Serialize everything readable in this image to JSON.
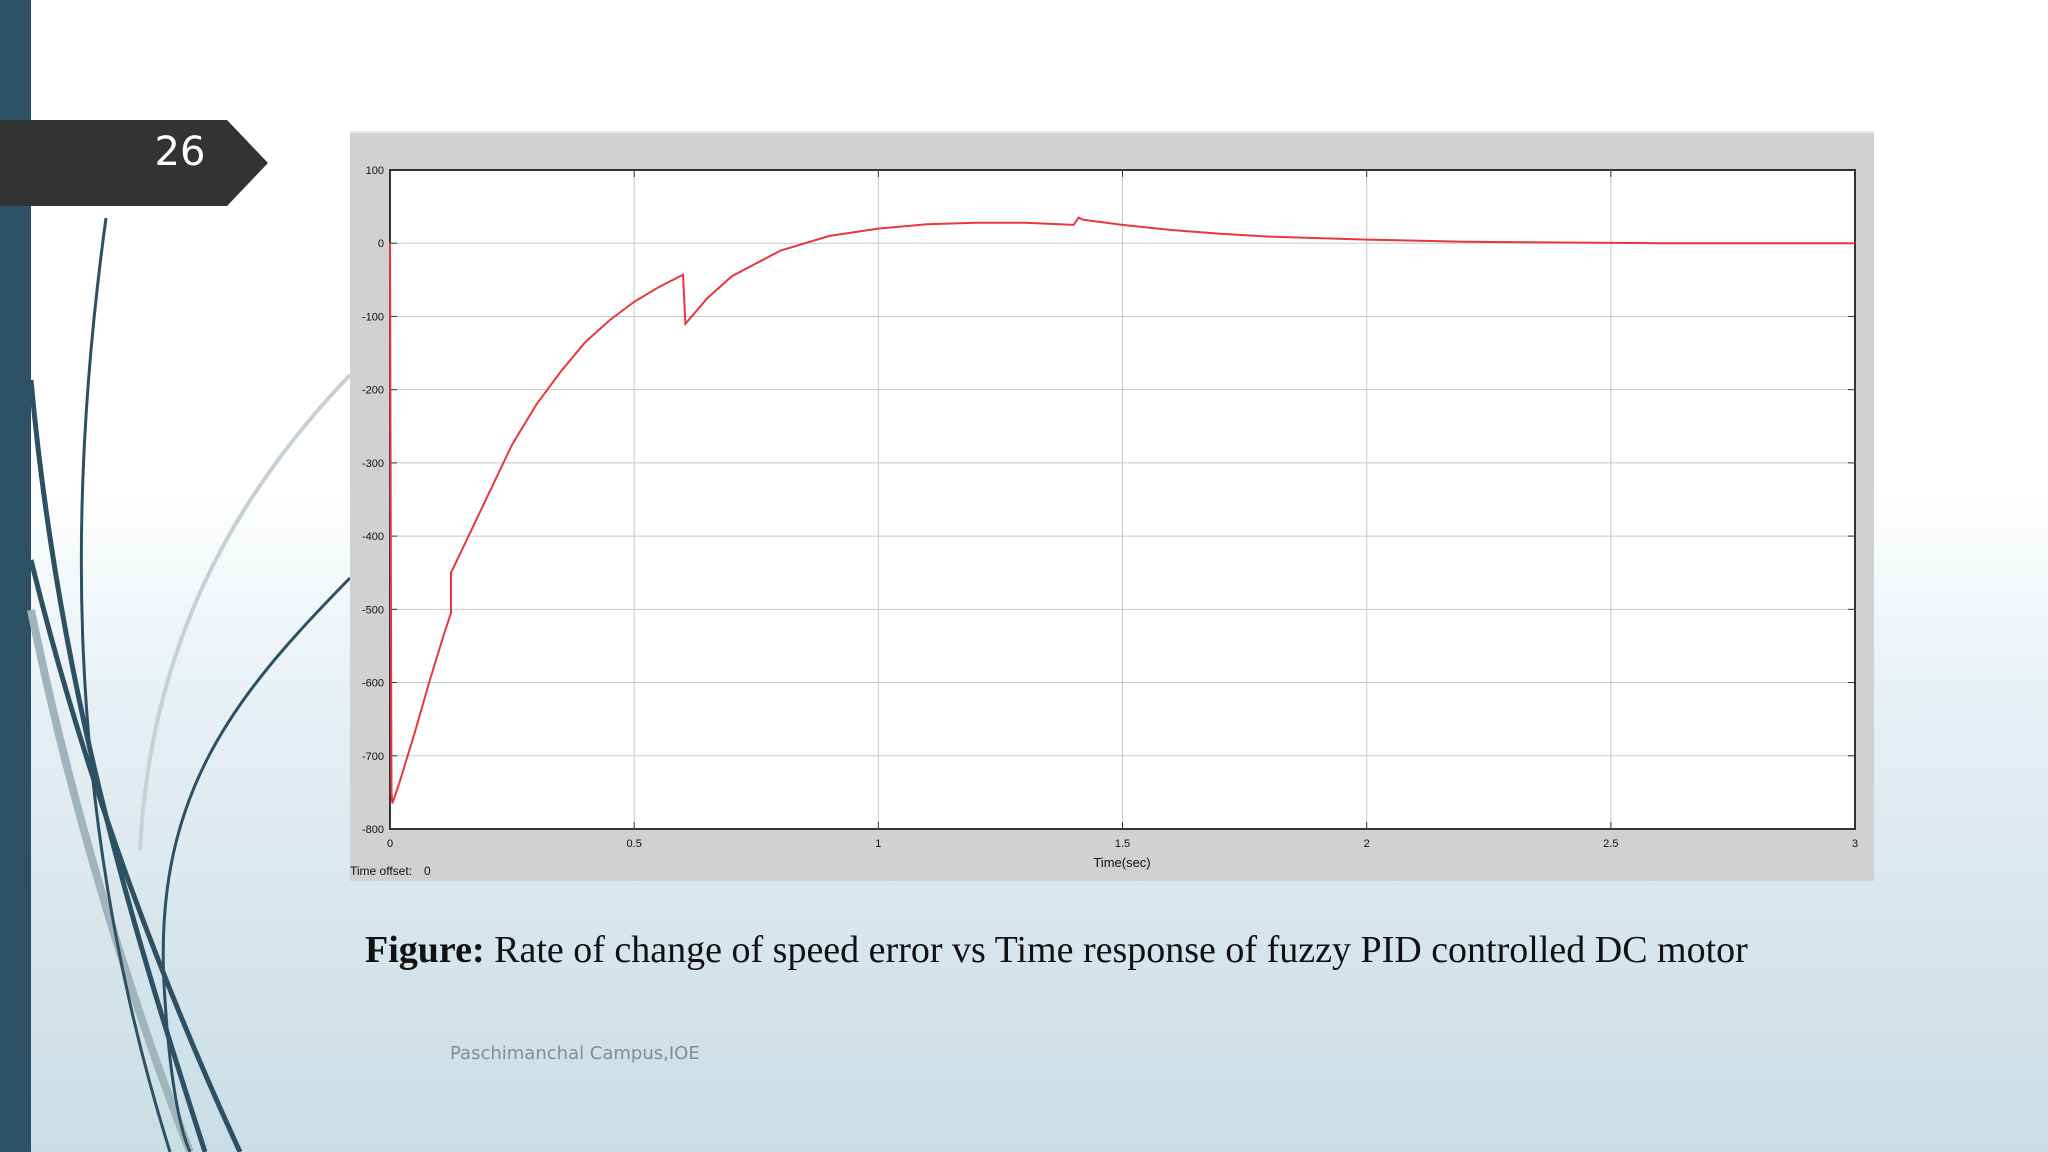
{
  "slide": {
    "number": "26",
    "footer": "Paschimanchal Campus,IOE"
  },
  "caption": {
    "prefix": "Figure:",
    "text": " Rate of change of speed error vs Time response of fuzzy PID controlled DC motor"
  },
  "scope": {
    "time_offset_label": "Time offset:",
    "time_offset_value": "0"
  },
  "colors": {
    "accent_bar": "#2c5164",
    "trace": "#e8383b",
    "tab": "#333333"
  },
  "chart_data": {
    "type": "line",
    "xlabel": "Time(sec)",
    "ylabel": "",
    "xlim": [
      0,
      3
    ],
    "ylim": [
      -800,
      100
    ],
    "xticks": [
      0,
      0.5,
      1,
      1.5,
      2,
      2.5,
      3
    ],
    "xtick_labels": [
      "0",
      "0.5",
      "1",
      "1.5",
      "2",
      "2.5",
      "3"
    ],
    "yticks": [
      100,
      0,
      -100,
      -200,
      -300,
      -400,
      -500,
      -600,
      -700,
      -800
    ],
    "ytick_labels": [
      "100",
      "0",
      "-100",
      "-200",
      "-300",
      "-400",
      "-500",
      "-600",
      "-700",
      "-800"
    ],
    "grid": true,
    "series": [
      {
        "x": [
          0,
          0.003,
          0.005,
          0.02,
          0.05,
          0.08,
          0.11,
          0.125,
          0.125,
          0.15,
          0.2,
          0.25,
          0.3,
          0.35,
          0.4,
          0.45,
          0.5,
          0.55,
          0.6,
          0.605,
          0.65,
          0.7,
          0.8,
          0.9,
          1.0,
          1.1,
          1.2,
          1.3,
          1.4,
          1.41,
          1.42,
          1.5,
          1.6,
          1.7,
          1.8,
          2.0,
          2.2,
          2.4,
          2.6,
          2.8,
          3.0
        ],
        "y": [
          0,
          -750,
          -765,
          -735,
          -670,
          -600,
          -535,
          -505,
          -450,
          -415,
          -345,
          -275,
          -220,
          -175,
          -135,
          -105,
          -80,
          -60,
          -43,
          -110,
          -75,
          -45,
          -10,
          10,
          20,
          26,
          28,
          28,
          25,
          35,
          32,
          25,
          18,
          13,
          9,
          5,
          2,
          1,
          0,
          0,
          0
        ]
      }
    ]
  }
}
